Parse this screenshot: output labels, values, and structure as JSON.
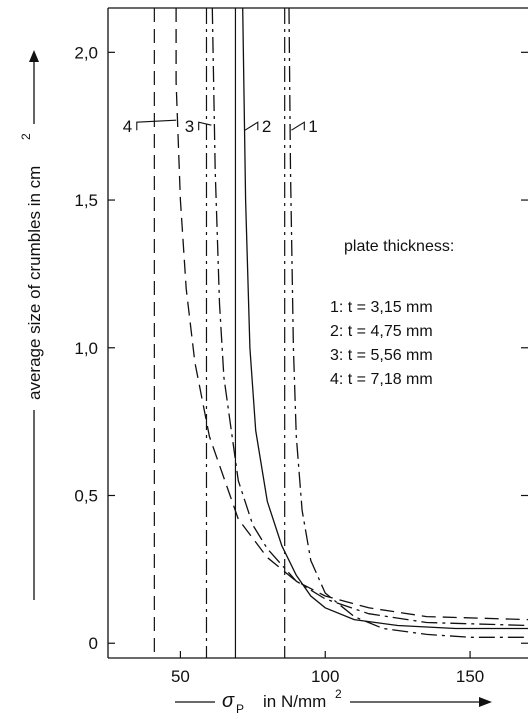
{
  "chart_data": {
    "type": "line",
    "ylabel": "average size of crumbles in cm",
    "ylabel_superscript": "2",
    "xlabel_symbol": "σ",
    "xlabel_subscript": "P",
    "xlabel_unit": "in N/mm",
    "xlabel_superscript": "2",
    "x_ticks": [
      "50",
      "100",
      "150"
    ],
    "x_tick_values": [
      50,
      100,
      150
    ],
    "y_ticks": [
      "0",
      "0,5",
      "1,0",
      "1,5",
      "2,0"
    ],
    "y_tick_values": [
      0,
      0.5,
      1.0,
      1.5,
      2.0
    ],
    "xlim": [
      25,
      170
    ],
    "ylim": [
      -0.05,
      2.15
    ],
    "legend": {
      "title": "plate thickness:",
      "entries": [
        "1: t = 3,15 mm",
        "2: t = 4,75 mm",
        "3: t = 5,56 mm",
        "4: t = 7,18 mm"
      ]
    },
    "series": [
      {
        "label": "1",
        "asymptote_x": 86,
        "style": "dash-dot",
        "points": [
          [
            87.5,
            2.15
          ],
          [
            88,
            1.6
          ],
          [
            89,
            1.0
          ],
          [
            90,
            0.7
          ],
          [
            92,
            0.45
          ],
          [
            95,
            0.28
          ],
          [
            100,
            0.17
          ],
          [
            110,
            0.09
          ],
          [
            120,
            0.05
          ],
          [
            135,
            0.03
          ],
          [
            150,
            0.02
          ],
          [
            170,
            0.02
          ]
        ]
      },
      {
        "label": "2",
        "asymptote_x": 69,
        "style": "solid",
        "points": [
          [
            71.5,
            2.15
          ],
          [
            72.5,
            1.5
          ],
          [
            74,
            1.0
          ],
          [
            76,
            0.72
          ],
          [
            80,
            0.48
          ],
          [
            85,
            0.33
          ],
          [
            90,
            0.23
          ],
          [
            95,
            0.16
          ],
          [
            100,
            0.12
          ],
          [
            110,
            0.08
          ],
          [
            125,
            0.06
          ],
          [
            145,
            0.05
          ],
          [
            170,
            0.05
          ]
        ]
      },
      {
        "label": "3",
        "asymptote_x": 59,
        "style": "dash-dot",
        "points": [
          [
            61,
            2.15
          ],
          [
            62,
            1.6
          ],
          [
            63.5,
            1.15
          ],
          [
            65,
            0.9
          ],
          [
            70,
            0.55
          ],
          [
            75,
            0.4
          ],
          [
            80,
            0.32
          ],
          [
            90,
            0.21
          ],
          [
            100,
            0.15
          ],
          [
            115,
            0.1
          ],
          [
            135,
            0.07
          ],
          [
            170,
            0.06
          ]
        ]
      },
      {
        "label": "4",
        "asymptote_x": 41,
        "style": "dashed",
        "points": [
          [
            48.5,
            2.15
          ],
          [
            48.5,
            1.9
          ],
          [
            50,
            1.5
          ],
          [
            52,
            1.2
          ],
          [
            55,
            0.95
          ],
          [
            60,
            0.7
          ],
          [
            70,
            0.42
          ],
          [
            80,
            0.29
          ],
          [
            90,
            0.21
          ],
          [
            100,
            0.16
          ],
          [
            115,
            0.12
          ],
          [
            135,
            0.09
          ],
          [
            170,
            0.08
          ]
        ]
      }
    ],
    "series_labels_y": 1.75
  }
}
